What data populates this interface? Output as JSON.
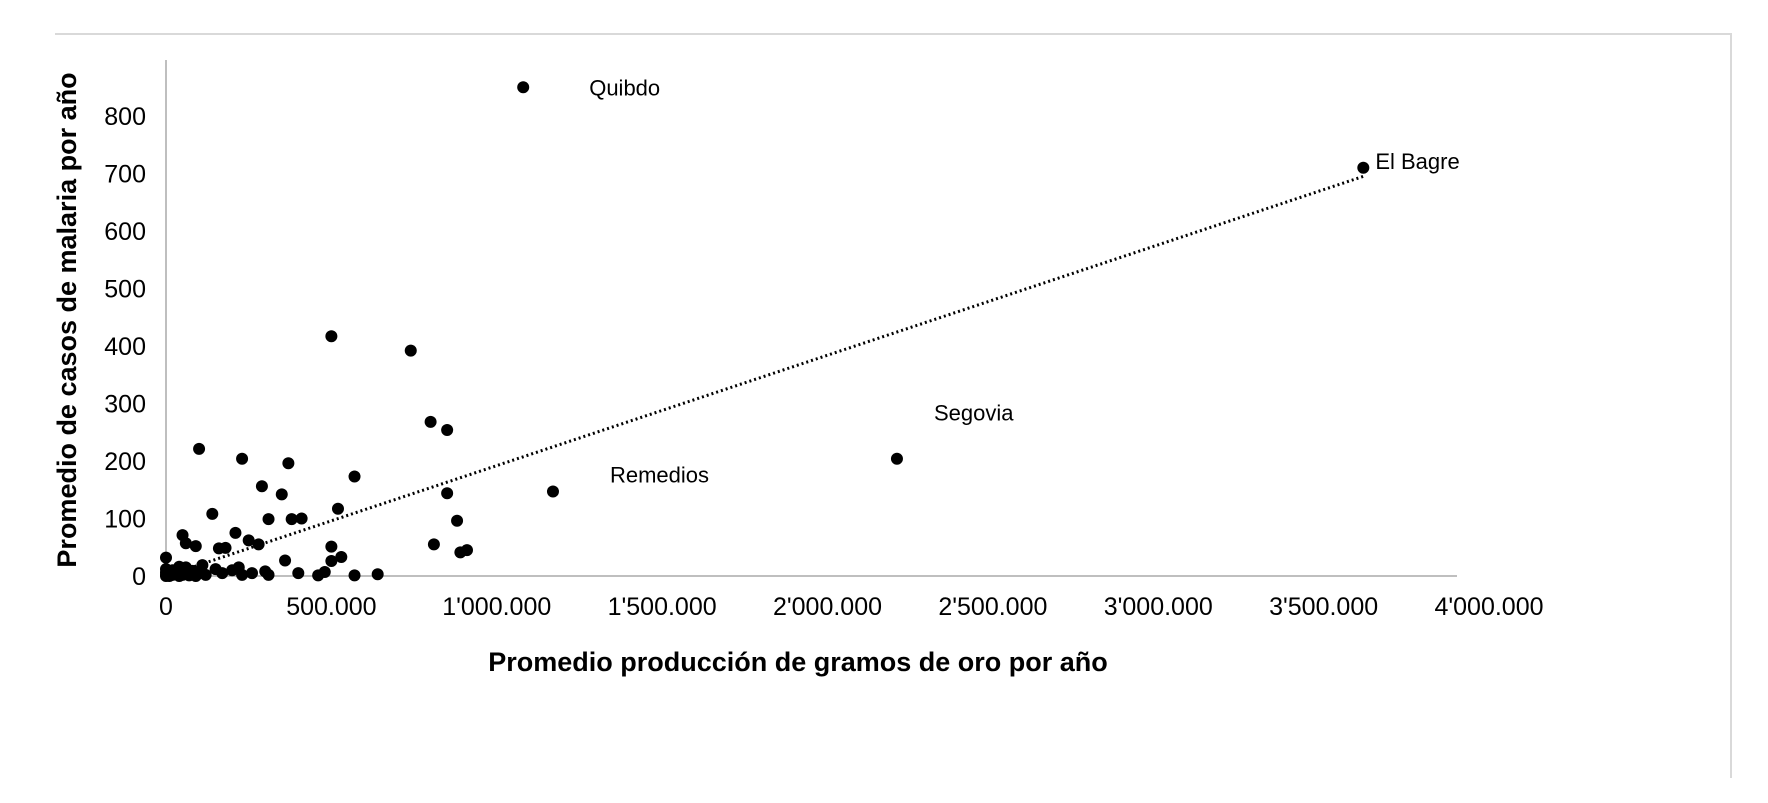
{
  "chart_data": {
    "type": "scatter",
    "title": "",
    "xlabel": "Promedio producción de gramos de oro por año",
    "ylabel": "Promedio de casos de malaria por año",
    "xlim": [
      0,
      4000000
    ],
    "ylim": [
      0,
      900
    ],
    "x_ticks": [
      0,
      500000,
      1000000,
      1500000,
      2000000,
      2500000,
      3000000,
      3500000,
      4000000
    ],
    "x_tick_labels": [
      "0",
      "500.000",
      "1'000.000",
      "1'500.000",
      "2'000.000",
      "2'500.000",
      "3'000.000",
      "3'500.000",
      "4'000.000"
    ],
    "y_ticks": [
      0,
      100,
      200,
      300,
      400,
      500,
      600,
      700,
      800
    ],
    "y_tick_labels": [
      "0",
      "100",
      "200",
      "300",
      "400",
      "500",
      "600",
      "700",
      "800"
    ],
    "grid": false,
    "legend": "none",
    "marker_color": "#000000",
    "trendline": {
      "style": "dotted",
      "x": [
        0,
        3620000
      ],
      "y": [
        0,
        695
      ]
    },
    "annotations": [
      {
        "text": "Quibdo",
        "x": 1080000,
        "y": 850
      },
      {
        "text": "El Bagre",
        "x": 3620000,
        "y": 710
      },
      {
        "text": "Segovia",
        "x": 2210000,
        "y": 204
      },
      {
        "text": "Remedios",
        "x": 1170000,
        "y": 147
      }
    ],
    "points": [
      {
        "x": 1080000,
        "y": 850
      },
      {
        "x": 3620000,
        "y": 710
      },
      {
        "x": 2210000,
        "y": 204
      },
      {
        "x": 1170000,
        "y": 147
      },
      {
        "x": 500000,
        "y": 417
      },
      {
        "x": 740000,
        "y": 392
      },
      {
        "x": 800000,
        "y": 268
      },
      {
        "x": 850000,
        "y": 254
      },
      {
        "x": 100000,
        "y": 221
      },
      {
        "x": 230000,
        "y": 204
      },
      {
        "x": 370000,
        "y": 196
      },
      {
        "x": 570000,
        "y": 173
      },
      {
        "x": 290000,
        "y": 156
      },
      {
        "x": 850000,
        "y": 144
      },
      {
        "x": 350000,
        "y": 142
      },
      {
        "x": 520000,
        "y": 117
      },
      {
        "x": 140000,
        "y": 108
      },
      {
        "x": 310000,
        "y": 99
      },
      {
        "x": 380000,
        "y": 99
      },
      {
        "x": 410000,
        "y": 100
      },
      {
        "x": 880000,
        "y": 96
      },
      {
        "x": 210000,
        "y": 75
      },
      {
        "x": 50000,
        "y": 71
      },
      {
        "x": 250000,
        "y": 62
      },
      {
        "x": 60000,
        "y": 57
      },
      {
        "x": 280000,
        "y": 55
      },
      {
        "x": 810000,
        "y": 55
      },
      {
        "x": 90000,
        "y": 52
      },
      {
        "x": 500000,
        "y": 51
      },
      {
        "x": 160000,
        "y": 48
      },
      {
        "x": 180000,
        "y": 49
      },
      {
        "x": 910000,
        "y": 45
      },
      {
        "x": 890000,
        "y": 41
      },
      {
        "x": 530000,
        "y": 33
      },
      {
        "x": 0,
        "y": 32
      },
      {
        "x": 360000,
        "y": 27
      },
      {
        "x": 500000,
        "y": 26
      },
      {
        "x": 110000,
        "y": 19
      },
      {
        "x": 40000,
        "y": 16
      },
      {
        "x": 60000,
        "y": 15
      },
      {
        "x": 220000,
        "y": 15
      },
      {
        "x": 150000,
        "y": 12
      },
      {
        "x": 0,
        "y": 12
      },
      {
        "x": 20000,
        "y": 10
      },
      {
        "x": 200000,
        "y": 10
      },
      {
        "x": 80000,
        "y": 9
      },
      {
        "x": 300000,
        "y": 8
      },
      {
        "x": 480000,
        "y": 7
      },
      {
        "x": 0,
        "y": 6
      },
      {
        "x": 30000,
        "y": 6
      },
      {
        "x": 100000,
        "y": 5
      },
      {
        "x": 170000,
        "y": 5
      },
      {
        "x": 260000,
        "y": 5
      },
      {
        "x": 400000,
        "y": 5
      },
      {
        "x": 640000,
        "y": 3
      },
      {
        "x": 0,
        "y": 2
      },
      {
        "x": 20000,
        "y": 2
      },
      {
        "x": 50000,
        "y": 2
      },
      {
        "x": 120000,
        "y": 2
      },
      {
        "x": 230000,
        "y": 2
      },
      {
        "x": 310000,
        "y": 2
      },
      {
        "x": 460000,
        "y": 1
      },
      {
        "x": 570000,
        "y": 1
      },
      {
        "x": 70000,
        "y": 1
      },
      {
        "x": 0,
        "y": 0
      },
      {
        "x": 10000,
        "y": 0
      },
      {
        "x": 40000,
        "y": 0
      },
      {
        "x": 90000,
        "y": 0
      }
    ]
  }
}
